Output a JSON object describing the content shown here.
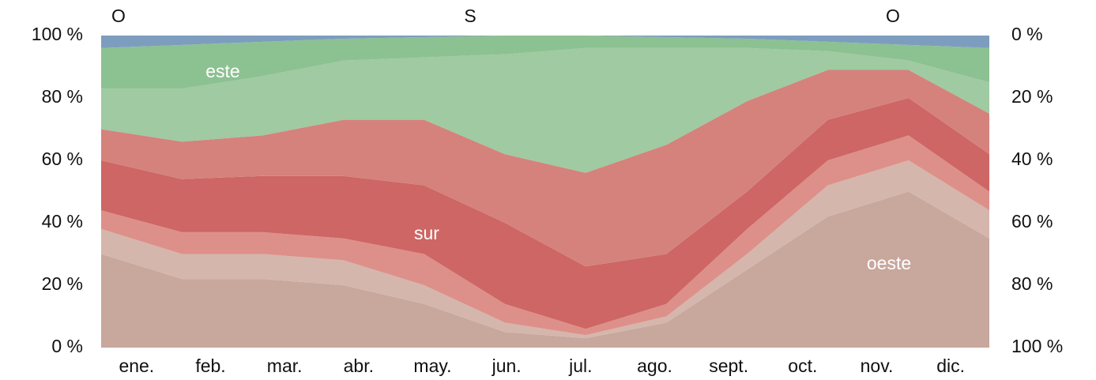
{
  "chart_data": {
    "type": "stacked_area",
    "top_labels": [
      "O",
      "S",
      "O"
    ],
    "annotations": [
      "este",
      "sur",
      "oeste"
    ],
    "categories": [
      "ene.",
      "feb.",
      "mar.",
      "abr.",
      "may.",
      "jun.",
      "jul.",
      "ago.",
      "sept.",
      "oct.",
      "nov.",
      "dic."
    ],
    "series": [
      {
        "color": "#c8a79d",
        "values": [
          30,
          22,
          22,
          20,
          14,
          5,
          3,
          8,
          25,
          42,
          50,
          35
        ]
      },
      {
        "color": "#d4b6ac",
        "values": [
          8,
          8,
          8,
          8,
          6,
          3,
          1,
          2,
          5,
          10,
          10,
          9
        ]
      },
      {
        "color": "#dd9089",
        "values": [
          6,
          7,
          7,
          7,
          10,
          6,
          2,
          4,
          8,
          8,
          8,
          6
        ]
      },
      {
        "color": "#cd6664",
        "values": [
          16,
          17,
          18,
          20,
          22,
          26,
          20,
          16,
          12,
          13,
          12,
          12
        ]
      },
      {
        "color": "#d5827c",
        "values": [
          10,
          12,
          13,
          18,
          21,
          22,
          30,
          35,
          29,
          16,
          9,
          13
        ]
      },
      {
        "color": "#9fcaa2",
        "values": [
          13,
          17,
          19,
          19,
          20,
          32,
          40,
          31,
          17,
          6,
          3,
          10
        ]
      },
      {
        "color": "#8cc191",
        "values": [
          13,
          14,
          11,
          7,
          6.5,
          6,
          4,
          3.5,
          3,
          3,
          5,
          11
        ]
      },
      {
        "color": "#7d9dbf",
        "values": [
          4,
          3,
          2,
          1,
          0.5,
          0,
          0,
          0.5,
          1,
          2,
          3,
          4
        ]
      }
    ],
    "ylim": [
      0,
      100
    ],
    "yticks": [
      {
        "value": 0,
        "label": "0 %"
      },
      {
        "value": 20,
        "label": "20 %"
      },
      {
        "value": 40,
        "label": "40 %"
      },
      {
        "value": 60,
        "label": "60 %"
      },
      {
        "value": 80,
        "label": "80 %"
      },
      {
        "value": 100,
        "label": "100 %"
      }
    ],
    "y2lim": [
      100,
      0
    ],
    "y2ticks": [
      {
        "value": 0,
        "label": "0 %"
      },
      {
        "value": 20,
        "label": "20 %"
      },
      {
        "value": 40,
        "label": "40 %"
      },
      {
        "value": 60,
        "label": "60 %"
      },
      {
        "value": 80,
        "label": "80 %"
      },
      {
        "value": 100,
        "label": "100 %"
      }
    ]
  }
}
